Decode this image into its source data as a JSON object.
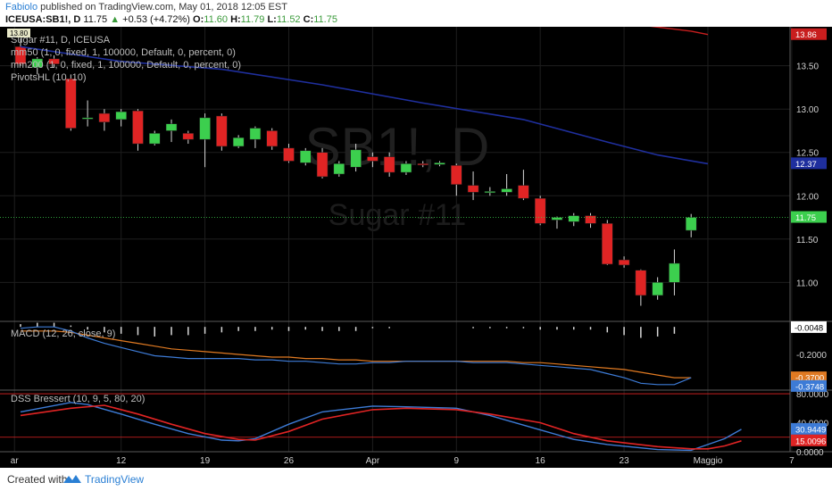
{
  "header": {
    "author": "Fabiolo",
    "published": "published on TradingView.com, May 01, 2018 12:05 EST",
    "symbol": "ICEUSA:SB1!, D",
    "last": "11.75",
    "change_arrow": "▲",
    "change": "+0.53 (+4.72%)",
    "o_label": "O:",
    "o_val": "11.60",
    "h_label": "H:",
    "h_val": "11.79",
    "l_label": "L:",
    "l_val": "11.52",
    "c_label": "C:",
    "c_val": "11.75"
  },
  "legend": {
    "series": "Sugar #11, D, ICEUSA",
    "ma50": "mm50 (1, 0, fixed, 1, 100000, Default, 0, percent, 0)",
    "ma200": "mm200 (1, 0, fixed, 1, 100000, Default, 0, percent, 0)",
    "pivots": "PivotsHL (10, 10)",
    "pivot_marker": "13.80",
    "macd": "MACD (12, 26, close, 9)",
    "dss": "DSS Bressert (10, 9, 5, 80, 20)"
  },
  "watermark": {
    "symbol": "SB1!, D",
    "name": "Sugar #11"
  },
  "footer": {
    "created": "Created with",
    "brand": "TradingView"
  },
  "colors": {
    "background": "#000000",
    "up": "#3ccf4e",
    "down": "#e02424",
    "ma50": "#c81e1e",
    "ma200": "#1f2f9e",
    "macd": "#3d7bd6",
    "signal": "#e07a22",
    "dss_fast": "#3d7bd6",
    "dss_slow": "#e02424",
    "last_price": "#3ccf4e"
  },
  "chart_data": [
    {
      "type": "candlestick",
      "title": "Sugar #11, D, ICEUSA",
      "ylim": [
        10.55,
        13.95
      ],
      "yticks": [
        "13.50",
        "13.00",
        "12.50",
        "12.00",
        "11.50",
        "11.00"
      ],
      "x_ticks": [
        "ar",
        "12",
        "19",
        "26",
        "Apr",
        "9",
        "16",
        "23",
        "Maggio",
        "7"
      ],
      "candles": [
        {
          "o": 13.72,
          "h": 13.82,
          "l": 13.5,
          "c": 13.52
        },
        {
          "o": 13.48,
          "h": 13.6,
          "l": 13.4,
          "c": 13.58
        },
        {
          "o": 13.58,
          "h": 13.62,
          "l": 13.48,
          "c": 13.52
        },
        {
          "o": 13.35,
          "h": 13.4,
          "l": 12.75,
          "c": 12.78
        },
        {
          "o": 12.9,
          "h": 13.1,
          "l": 12.8,
          "c": 12.9
        },
        {
          "o": 12.95,
          "h": 13.0,
          "l": 12.75,
          "c": 12.85
        },
        {
          "o": 12.88,
          "h": 13.0,
          "l": 12.8,
          "c": 12.97
        },
        {
          "o": 12.98,
          "h": 13.0,
          "l": 12.52,
          "c": 12.6
        },
        {
          "o": 12.6,
          "h": 12.75,
          "l": 12.58,
          "c": 12.72
        },
        {
          "o": 12.75,
          "h": 12.88,
          "l": 12.62,
          "c": 12.83
        },
        {
          "o": 12.72,
          "h": 12.75,
          "l": 12.6,
          "c": 12.65
        },
        {
          "o": 12.65,
          "h": 12.95,
          "l": 12.33,
          "c": 12.9
        },
        {
          "o": 12.92,
          "h": 12.95,
          "l": 12.52,
          "c": 12.57
        },
        {
          "o": 12.57,
          "h": 12.7,
          "l": 12.55,
          "c": 12.67
        },
        {
          "o": 12.65,
          "h": 12.8,
          "l": 12.55,
          "c": 12.78
        },
        {
          "o": 12.75,
          "h": 12.78,
          "l": 12.53,
          "c": 12.57
        },
        {
          "o": 12.55,
          "h": 12.6,
          "l": 12.38,
          "c": 12.4
        },
        {
          "o": 12.38,
          "h": 12.55,
          "l": 12.35,
          "c": 12.52
        },
        {
          "o": 12.5,
          "h": 12.55,
          "l": 12.2,
          "c": 12.22
        },
        {
          "o": 12.25,
          "h": 12.4,
          "l": 12.22,
          "c": 12.37
        },
        {
          "o": 12.33,
          "h": 12.6,
          "l": 12.28,
          "c": 12.53
        },
        {
          "o": 12.45,
          "h": 12.5,
          "l": 12.33,
          "c": 12.4
        },
        {
          "o": 12.45,
          "h": 12.5,
          "l": 12.22,
          "c": 12.27
        },
        {
          "o": 12.27,
          "h": 12.4,
          "l": 12.24,
          "c": 12.37
        },
        {
          "o": 12.37,
          "h": 12.4,
          "l": 12.33,
          "c": 12.36
        },
        {
          "o": 12.36,
          "h": 12.4,
          "l": 12.34,
          "c": 12.38
        },
        {
          "o": 12.35,
          "h": 12.37,
          "l": 12.0,
          "c": 12.13
        },
        {
          "o": 12.12,
          "h": 12.28,
          "l": 11.95,
          "c": 12.04
        },
        {
          "o": 12.05,
          "h": 12.1,
          "l": 12.0,
          "c": 12.05
        },
        {
          "o": 12.04,
          "h": 12.25,
          "l": 12.0,
          "c": 12.08
        },
        {
          "o": 12.12,
          "h": 12.3,
          "l": 11.95,
          "c": 11.97
        },
        {
          "o": 11.97,
          "h": 12.0,
          "l": 11.66,
          "c": 11.68
        },
        {
          "o": 11.72,
          "h": 11.76,
          "l": 11.62,
          "c": 11.75
        },
        {
          "o": 11.7,
          "h": 11.8,
          "l": 11.65,
          "c": 11.77
        },
        {
          "o": 11.77,
          "h": 11.8,
          "l": 11.63,
          "c": 11.68
        },
        {
          "o": 11.68,
          "h": 11.72,
          "l": 11.2,
          "c": 11.21
        },
        {
          "o": 11.26,
          "h": 11.3,
          "l": 11.17,
          "c": 11.2
        },
        {
          "o": 11.14,
          "h": 11.15,
          "l": 10.73,
          "c": 10.85
        },
        {
          "o": 10.85,
          "h": 11.06,
          "l": 10.8,
          "c": 11.0
        },
        {
          "o": 11.0,
          "h": 11.38,
          "l": 10.85,
          "c": 11.22
        },
        {
          "o": 11.6,
          "h": 11.79,
          "l": 11.52,
          "c": 11.75
        }
      ],
      "ma50": [
        [
          37,
          13.97
        ],
        [
          40,
          13.9
        ],
        [
          41,
          13.86
        ]
      ],
      "ma200": [
        [
          0,
          13.72
        ],
        [
          6,
          13.55
        ],
        [
          12,
          13.46
        ],
        [
          18,
          13.28
        ],
        [
          24,
          13.07
        ],
        [
          30,
          12.88
        ],
        [
          35,
          12.62
        ],
        [
          38,
          12.47
        ],
        [
          41,
          12.37
        ]
      ],
      "price_labels": [
        {
          "value": 13.86,
          "text": "13.86",
          "color": "#c81e1e"
        },
        {
          "value": 12.37,
          "text": "12.37",
          "color": "#1f2f9e"
        },
        {
          "value": 11.75,
          "text": "11.75",
          "color": "#3ccf4e"
        }
      ]
    },
    {
      "type": "line",
      "title": "MACD (12, 26, close, 9)",
      "ylim": [
        -0.46,
        0.04
      ],
      "yticks": [
        "-0.2000"
      ],
      "macd": [
        -0.01,
        0.0,
        0.0,
        -0.03,
        -0.08,
        -0.12,
        -0.15,
        -0.18,
        -0.21,
        -0.22,
        -0.23,
        -0.23,
        -0.23,
        -0.23,
        -0.24,
        -0.24,
        -0.25,
        -0.25,
        -0.26,
        -0.27,
        -0.27,
        -0.26,
        -0.26,
        -0.25,
        -0.25,
        -0.25,
        -0.25,
        -0.26,
        -0.26,
        -0.26,
        -0.27,
        -0.28,
        -0.29,
        -0.3,
        -0.31,
        -0.34,
        -0.37,
        -0.41,
        -0.42,
        -0.42,
        -0.37
      ],
      "signal": [
        -0.03,
        -0.03,
        -0.03,
        -0.04,
        -0.06,
        -0.08,
        -0.1,
        -0.12,
        -0.14,
        -0.16,
        -0.17,
        -0.18,
        -0.19,
        -0.2,
        -0.21,
        -0.22,
        -0.22,
        -0.23,
        -0.23,
        -0.24,
        -0.24,
        -0.25,
        -0.25,
        -0.25,
        -0.25,
        -0.25,
        -0.25,
        -0.25,
        -0.25,
        -0.25,
        -0.26,
        -0.26,
        -0.27,
        -0.28,
        -0.29,
        -0.3,
        -0.31,
        -0.33,
        -0.35,
        -0.37,
        -0.37
      ],
      "hist": [
        0.02,
        0.03,
        0.03,
        0.01,
        -0.02,
        -0.04,
        -0.05,
        -0.06,
        -0.07,
        -0.06,
        -0.06,
        -0.05,
        -0.04,
        -0.03,
        -0.03,
        -0.02,
        -0.03,
        -0.02,
        -0.03,
        -0.03,
        -0.03,
        -0.01,
        -0.01,
        0.0,
        0.0,
        0.0,
        0.0,
        -0.01,
        -0.01,
        -0.01,
        -0.01,
        -0.02,
        -0.02,
        -0.02,
        -0.02,
        -0.04,
        -0.06,
        -0.08,
        -0.07,
        -0.05,
        0.0
      ],
      "value_labels": [
        {
          "value": -0.0048,
          "text": "-0.0048",
          "color": "#e0b04a"
        },
        {
          "value": -0.37,
          "text": "-0.3700",
          "color": "#e07a22"
        },
        {
          "value": -0.3748,
          "text": "-0.3748",
          "color": "#3d7bd6"
        }
      ]
    },
    {
      "type": "line",
      "title": "DSS Bressert (10, 9, 5, 80, 20)",
      "ylim": [
        0,
        85
      ],
      "yticks": [
        "80.0000",
        "40.0000",
        "0.0000"
      ],
      "levels": [
        80,
        20
      ],
      "fast": [
        [
          0,
          55
        ],
        [
          3,
          68
        ],
        [
          4,
          65
        ],
        [
          6,
          52
        ],
        [
          8,
          38
        ],
        [
          10,
          25
        ],
        [
          12,
          16
        ],
        [
          13,
          15
        ],
        [
          14,
          18
        ],
        [
          16,
          38
        ],
        [
          18,
          55
        ],
        [
          21,
          63
        ],
        [
          23,
          62
        ],
        [
          26,
          60
        ],
        [
          28,
          50
        ],
        [
          31,
          30
        ],
        [
          33,
          17
        ],
        [
          35,
          10
        ],
        [
          38,
          3
        ],
        [
          40,
          2
        ],
        [
          41,
          10
        ],
        [
          42,
          18
        ],
        [
          43,
          30.9
        ]
      ],
      "slow": [
        [
          0,
          50
        ],
        [
          3,
          60
        ],
        [
          5,
          64
        ],
        [
          7,
          52
        ],
        [
          9,
          38
        ],
        [
          11,
          25
        ],
        [
          13,
          17
        ],
        [
          14,
          16
        ],
        [
          16,
          28
        ],
        [
          18,
          45
        ],
        [
          21,
          58
        ],
        [
          23,
          60
        ],
        [
          26,
          58
        ],
        [
          28,
          52
        ],
        [
          31,
          40
        ],
        [
          33,
          25
        ],
        [
          35,
          15
        ],
        [
          38,
          7
        ],
        [
          40,
          4
        ],
        [
          41,
          4
        ],
        [
          42,
          8
        ],
        [
          43,
          15
        ]
      ],
      "value_labels": [
        {
          "value": 30.9449,
          "text": "30.9449",
          "color": "#3d7bd6"
        },
        {
          "value": 15.0096,
          "text": "15.0096",
          "color": "#e02424"
        }
      ]
    }
  ]
}
